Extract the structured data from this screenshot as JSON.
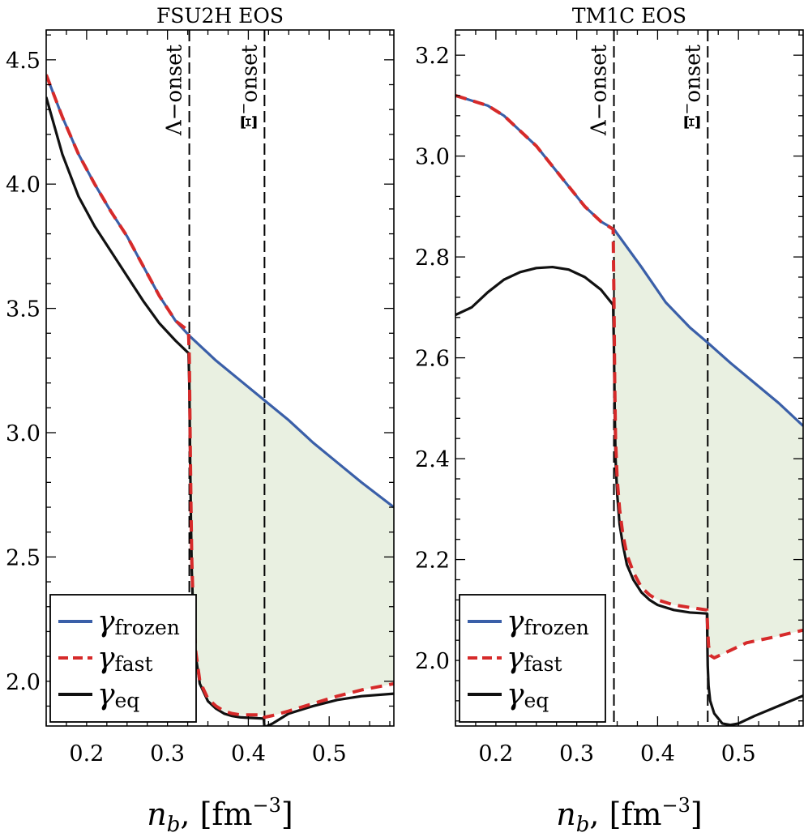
{
  "colors": {
    "frozen": "#3a5fa8",
    "fast": "#d62a2a",
    "eq": "#111111",
    "shade": "#e9f0e1"
  },
  "shared": {
    "xlabel_var": "n",
    "xlabel_sub": "b",
    "xlabel_unit": ", [fm",
    "xlabel_exp": "−3",
    "xlabel_close": "]",
    "legend": [
      {
        "key": "frozen",
        "symbol": "γ",
        "sub": "frozen",
        "style": "solid"
      },
      {
        "key": "fast",
        "symbol": "γ",
        "sub": "fast",
        "style": "dashed"
      },
      {
        "key": "eq",
        "symbol": "γ",
        "sub": "eq",
        "style": "solid"
      }
    ]
  },
  "chart_data": [
    {
      "type": "line",
      "title": "FSU2H EOS",
      "xlim": [
        0.15,
        0.58
      ],
      "ylim": [
        1.82,
        4.62
      ],
      "xticks": [
        0.2,
        0.3,
        0.4,
        0.5
      ],
      "xtick_labels": [
        "0.2",
        "0.3",
        "0.4",
        "0.5"
      ],
      "yticks": [
        2.0,
        2.5,
        3.0,
        3.5,
        4.0,
        4.5
      ],
      "ytick_labels": [
        "2.0",
        "2.5",
        "3.0",
        "3.5",
        "4.0",
        "4.5"
      ],
      "onsets": [
        {
          "x": 0.327,
          "label": "Λ−onset",
          "label_mode": "plain"
        },
        {
          "x": 0.42,
          "label": "Ξ−onset",
          "label_mode": "xi"
        }
      ],
      "series": [
        {
          "name": "γ_frozen",
          "key": "frozen",
          "x": [
            0.15,
            0.17,
            0.19,
            0.21,
            0.23,
            0.25,
            0.27,
            0.29,
            0.31,
            0.327,
            0.36,
            0.39,
            0.42,
            0.45,
            0.48,
            0.51,
            0.54,
            0.58
          ],
          "y": [
            4.44,
            4.27,
            4.12,
            4.0,
            3.89,
            3.79,
            3.67,
            3.55,
            3.45,
            3.39,
            3.29,
            3.21,
            3.13,
            3.05,
            2.96,
            2.88,
            2.8,
            2.7
          ]
        },
        {
          "name": "γ_fast",
          "key": "fast",
          "x": [
            0.15,
            0.17,
            0.19,
            0.21,
            0.23,
            0.25,
            0.27,
            0.29,
            0.31,
            0.326,
            0.327,
            0.328,
            0.329,
            0.33,
            0.332,
            0.335,
            0.34,
            0.35,
            0.36,
            0.37,
            0.38,
            0.39,
            0.4,
            0.419,
            0.42,
            0.43,
            0.45,
            0.48,
            0.51,
            0.54,
            0.58
          ],
          "y": [
            4.44,
            4.27,
            4.12,
            4.0,
            3.89,
            3.79,
            3.67,
            3.55,
            3.45,
            3.41,
            3.3,
            3.0,
            2.72,
            2.5,
            2.28,
            2.12,
            2.0,
            1.93,
            1.9,
            1.88,
            1.87,
            1.865,
            1.865,
            1.865,
            1.855,
            1.862,
            1.88,
            1.91,
            1.94,
            1.965,
            1.99
          ]
        },
        {
          "name": "γ_eq",
          "key": "eq",
          "x": [
            0.15,
            0.17,
            0.19,
            0.21,
            0.23,
            0.25,
            0.27,
            0.29,
            0.31,
            0.326,
            0.327,
            0.328,
            0.329,
            0.33,
            0.332,
            0.335,
            0.34,
            0.35,
            0.36,
            0.37,
            0.38,
            0.39,
            0.4,
            0.419,
            0.42,
            0.43,
            0.45,
            0.48,
            0.51,
            0.54,
            0.58
          ],
          "y": [
            4.35,
            4.12,
            3.95,
            3.83,
            3.73,
            3.63,
            3.53,
            3.44,
            3.37,
            3.32,
            3.2,
            2.9,
            2.65,
            2.45,
            2.25,
            2.1,
            1.99,
            1.92,
            1.89,
            1.87,
            1.86,
            1.855,
            1.853,
            1.85,
            1.815,
            1.83,
            1.87,
            1.9,
            1.925,
            1.94,
            1.95
          ]
        }
      ],
      "shaded": {
        "lower": "fast",
        "upper": "frozen",
        "from_x": 0.327
      }
    },
    {
      "type": "line",
      "title": "TM1C EOS",
      "xlim": [
        0.15,
        0.58
      ],
      "ylim": [
        1.87,
        3.25
      ],
      "xticks": [
        0.2,
        0.3,
        0.4,
        0.5
      ],
      "xtick_labels": [
        "0.2",
        "0.3",
        "0.4",
        "0.5"
      ],
      "yticks": [
        2.0,
        2.2,
        2.4,
        2.6,
        2.8,
        3.0,
        3.2
      ],
      "ytick_labels": [
        "2.0",
        "2.2",
        "2.4",
        "2.6",
        "2.8",
        "3.0",
        "3.2"
      ],
      "onsets": [
        {
          "x": 0.346,
          "label": "Λ−onset",
          "label_mode": "plain"
        },
        {
          "x": 0.462,
          "label": "Ξ−onset",
          "label_mode": "xi"
        }
      ],
      "series": [
        {
          "name": "γ_frozen",
          "key": "frozen",
          "x": [
            0.15,
            0.17,
            0.19,
            0.21,
            0.23,
            0.25,
            0.27,
            0.29,
            0.31,
            0.33,
            0.346,
            0.38,
            0.41,
            0.44,
            0.462,
            0.49,
            0.52,
            0.55,
            0.58
          ],
          "y": [
            3.12,
            3.11,
            3.1,
            3.08,
            3.05,
            3.02,
            2.98,
            2.94,
            2.9,
            2.87,
            2.855,
            2.78,
            2.71,
            2.66,
            2.63,
            2.59,
            2.55,
            2.51,
            2.465
          ]
        },
        {
          "name": "γ_fast",
          "key": "fast",
          "x": [
            0.15,
            0.17,
            0.19,
            0.21,
            0.23,
            0.25,
            0.27,
            0.29,
            0.31,
            0.33,
            0.345,
            0.346,
            0.347,
            0.348,
            0.35,
            0.353,
            0.357,
            0.362,
            0.37,
            0.38,
            0.39,
            0.4,
            0.42,
            0.44,
            0.461,
            0.462,
            0.463,
            0.465,
            0.47,
            0.49,
            0.51,
            0.54,
            0.58
          ],
          "y": [
            3.12,
            3.11,
            3.1,
            3.08,
            3.05,
            3.02,
            2.98,
            2.94,
            2.9,
            2.87,
            2.855,
            2.72,
            2.55,
            2.44,
            2.36,
            2.3,
            2.25,
            2.21,
            2.175,
            2.145,
            2.13,
            2.12,
            2.11,
            2.105,
            2.1,
            2.06,
            2.03,
            2.01,
            2.005,
            2.02,
            2.035,
            2.045,
            2.06
          ]
        },
        {
          "name": "γ_eq",
          "key": "eq",
          "x": [
            0.15,
            0.17,
            0.19,
            0.21,
            0.23,
            0.25,
            0.27,
            0.29,
            0.31,
            0.33,
            0.345,
            0.346,
            0.347,
            0.348,
            0.35,
            0.353,
            0.357,
            0.362,
            0.37,
            0.38,
            0.39,
            0.4,
            0.42,
            0.44,
            0.461,
            0.462,
            0.463,
            0.465,
            0.47,
            0.48,
            0.49,
            0.5,
            0.52,
            0.55,
            0.58
          ],
          "y": [
            2.685,
            2.7,
            2.73,
            2.755,
            2.77,
            2.778,
            2.78,
            2.775,
            2.76,
            2.735,
            2.705,
            2.62,
            2.49,
            2.4,
            2.33,
            2.27,
            2.23,
            2.19,
            2.16,
            2.135,
            2.12,
            2.11,
            2.1,
            2.095,
            2.093,
            1.99,
            1.95,
            1.92,
            1.895,
            1.875,
            1.872,
            1.875,
            1.89,
            1.91,
            1.93
          ]
        }
      ],
      "shaded": {
        "lower": "fast",
        "upper": "frozen",
        "from_x": 0.346
      }
    }
  ]
}
